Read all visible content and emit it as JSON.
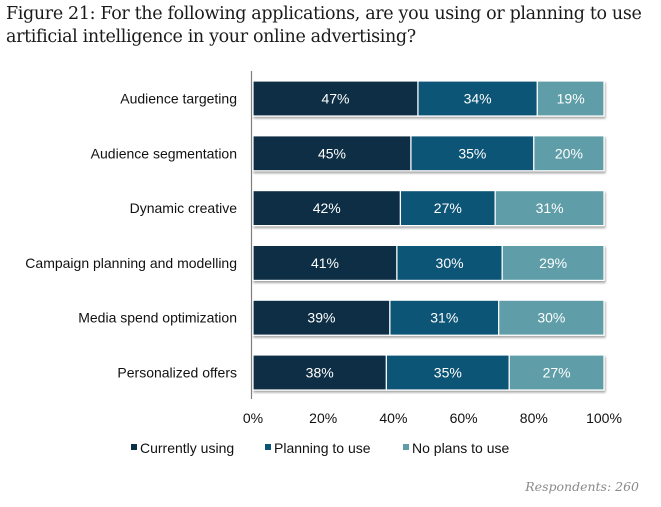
{
  "chart_data": {
    "type": "bar",
    "orientation": "horizontal",
    "stacked": true,
    "title_lines": [
      "Figure 21: For the following applications, are you using or planning to use",
      "artificial intelligence in your online advertising?"
    ],
    "categories": [
      "Audience targeting",
      "Audience segmentation",
      "Dynamic creative",
      "Campaign planning and modelling",
      "Media spend optimization",
      "Personalized offers"
    ],
    "series": [
      {
        "name": "Currently using",
        "color": "#0b2f45",
        "values": [
          47,
          45,
          42,
          41,
          39,
          38
        ]
      },
      {
        "name": "Planning to use",
        "color": "#0d5476",
        "values": [
          34,
          35,
          27,
          30,
          31,
          35
        ]
      },
      {
        "name": "No plans to use",
        "color": "#5f9ea8",
        "values": [
          19,
          20,
          31,
          29,
          30,
          27
        ]
      }
    ],
    "value_suffix": "%",
    "xlim": [
      0,
      100
    ],
    "xticks": [
      0,
      20,
      40,
      60,
      80,
      100
    ],
    "xtick_labels": [
      "0%",
      "20%",
      "40%",
      "60%",
      "80%",
      "100%"
    ],
    "xlabel": "",
    "ylabel": "",
    "grid": false,
    "legend_position": "bottom"
  },
  "footer": {
    "respondents": "Respondents: 260"
  }
}
